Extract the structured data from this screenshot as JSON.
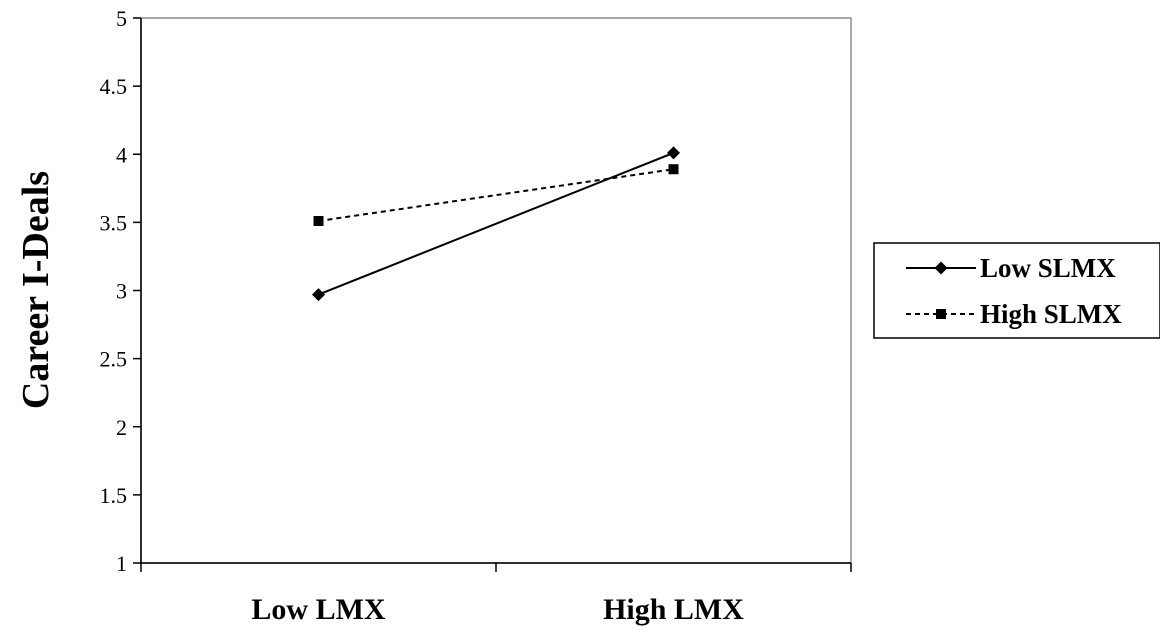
{
  "chart_data": {
    "type": "line",
    "title": "",
    "xlabel": "",
    "ylabel": "Career I-Deals",
    "categories": [
      "Low LMX",
      "High LMX"
    ],
    "ylim": [
      1,
      5
    ],
    "yticks": [
      "1",
      "1.5",
      "2",
      "2.5",
      "3",
      "3.5",
      "4",
      "4.5",
      "5"
    ],
    "grid": false,
    "legend_position": "right",
    "series": [
      {
        "name": "Low SLMX",
        "values": [
          2.97,
          4.01
        ],
        "line_style": "solid",
        "marker": "diamond",
        "color": "#000000"
      },
      {
        "name": "High SLMX",
        "values": [
          3.51,
          3.89
        ],
        "line_style": "dashed",
        "marker": "square",
        "color": "#000000"
      }
    ]
  }
}
